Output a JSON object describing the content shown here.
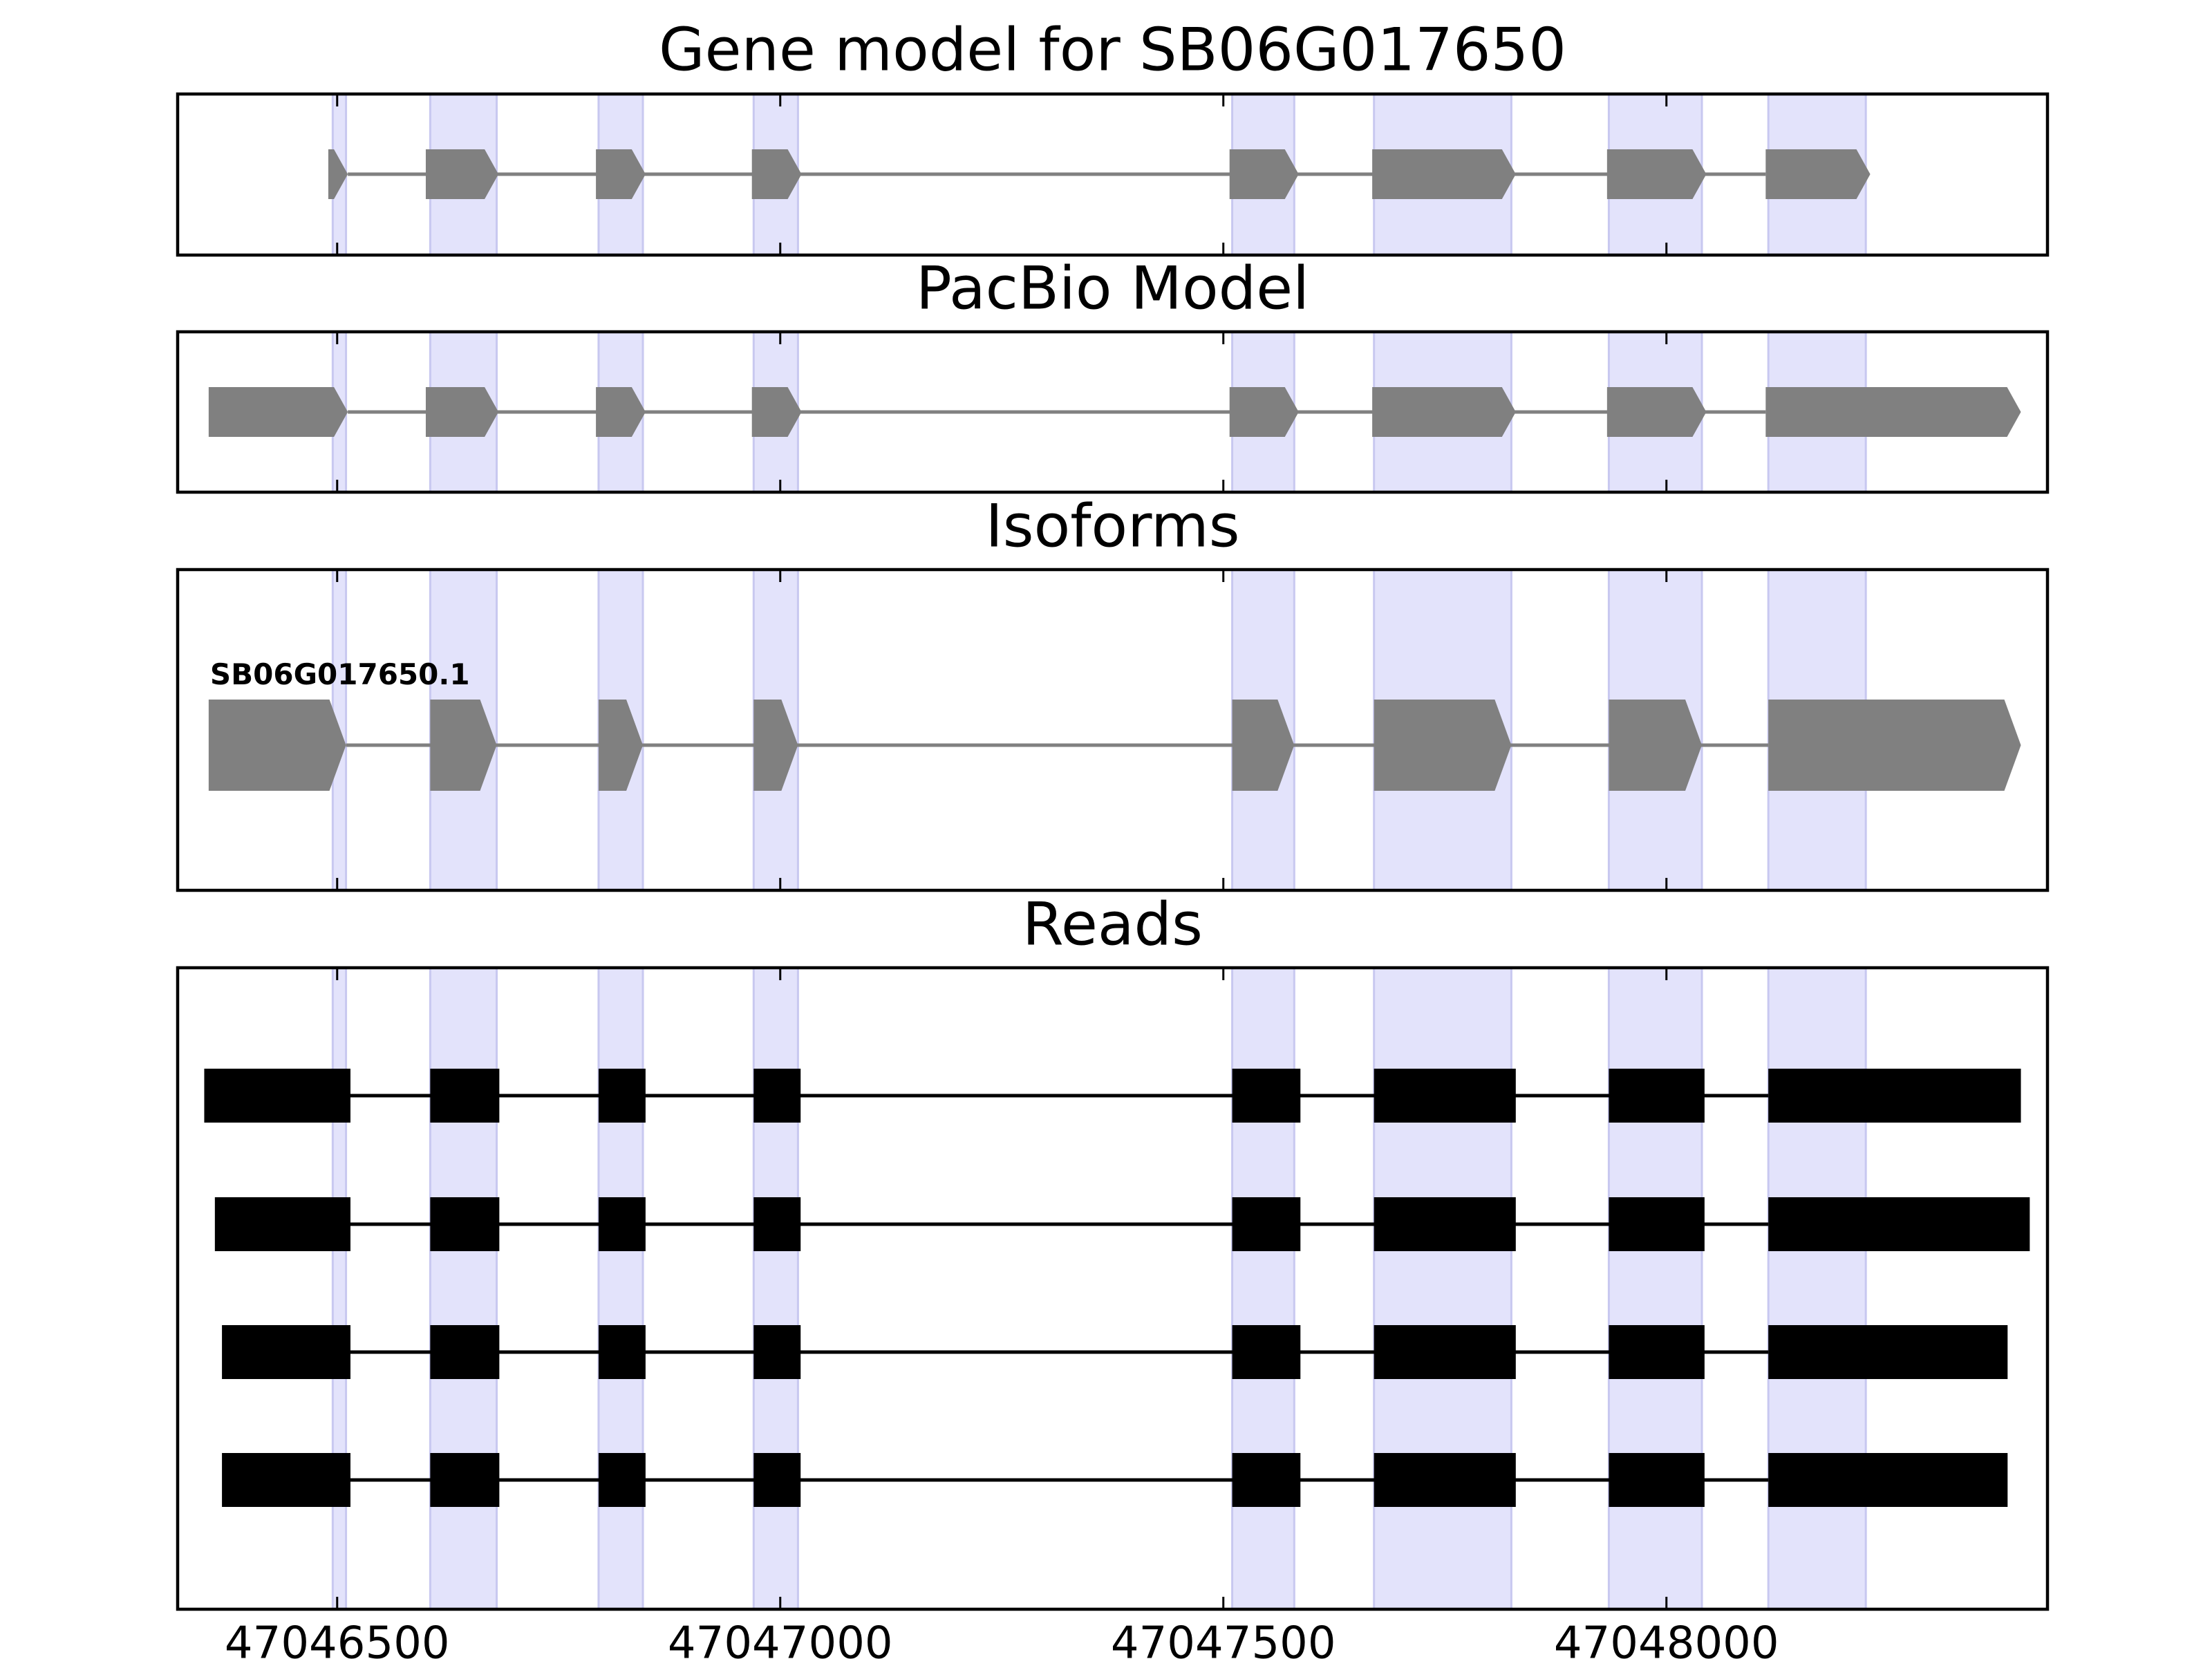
{
  "chart_data": {
    "type": "gene-model-track",
    "x_axis": {
      "unit": "genomic position (bp)",
      "range": [
        47046320,
        47048430
      ],
      "ticks": [
        "47046500",
        "47047000",
        "47047500",
        "47048000"
      ]
    },
    "exon_regions": [
      [
        47046495,
        47046510
      ],
      [
        47046605,
        47046680
      ],
      [
        47046795,
        47046845
      ],
      [
        47046970,
        47047020
      ],
      [
        47047510,
        47047580
      ],
      [
        47047670,
        47047825
      ],
      [
        47047935,
        47048040
      ],
      [
        47048115,
        47048225
      ]
    ],
    "panels": [
      {
        "title": "Gene model for SB06G017650",
        "style": "gene",
        "features": [
          {
            "exons": [
              [
                47046490,
                47046512
              ],
              [
                47046600,
                47046682
              ],
              [
                47046792,
                47046848
              ],
              [
                47046968,
                47047024
              ],
              [
                47047507,
                47047585
              ],
              [
                47047668,
                47047830
              ],
              [
                47047933,
                47048045
              ],
              [
                47048112,
                47048230
              ]
            ]
          }
        ]
      },
      {
        "title": "PacBio Model",
        "style": "gene",
        "features": [
          {
            "exons": [
              [
                47046355,
                47046512
              ],
              [
                47046600,
                47046682
              ],
              [
                47046792,
                47046848
              ],
              [
                47046968,
                47047024
              ],
              [
                47047507,
                47047585
              ],
              [
                47047668,
                47047830
              ],
              [
                47047933,
                47048045
              ],
              [
                47048112,
                47048400
              ]
            ]
          }
        ]
      },
      {
        "title": "Isoforms",
        "style": "isoform",
        "features": [
          {
            "label": "SB06G017650.1",
            "exons": [
              [
                47046355,
                47046510
              ],
              [
                47046605,
                47046680
              ],
              [
                47046795,
                47046845
              ],
              [
                47046970,
                47047020
              ],
              [
                47047510,
                47047580
              ],
              [
                47047670,
                47047825
              ],
              [
                47047935,
                47048040
              ],
              [
                47048115,
                47048400
              ]
            ]
          }
        ]
      },
      {
        "title": "Reads",
        "style": "read",
        "features": [
          {
            "exons": [
              [
                47046350,
                47046515
              ],
              [
                47046605,
                47046683
              ],
              [
                47046795,
                47046848
              ],
              [
                47046970,
                47047023
              ],
              [
                47047510,
                47047587
              ],
              [
                47047670,
                47047830
              ],
              [
                47047935,
                47048043
              ],
              [
                47048115,
                47048400
              ]
            ]
          },
          {
            "exons": [
              [
                47046362,
                47046515
              ],
              [
                47046605,
                47046683
              ],
              [
                47046795,
                47046848
              ],
              [
                47046970,
                47047023
              ],
              [
                47047510,
                47047587
              ],
              [
                47047670,
                47047830
              ],
              [
                47047935,
                47048043
              ],
              [
                47048115,
                47048410
              ]
            ]
          },
          {
            "exons": [
              [
                47046370,
                47046515
              ],
              [
                47046605,
                47046683
              ],
              [
                47046795,
                47046848
              ],
              [
                47046970,
                47047023
              ],
              [
                47047510,
                47047587
              ],
              [
                47047670,
                47047830
              ],
              [
                47047935,
                47048043
              ],
              [
                47048115,
                47048385
              ]
            ]
          },
          {
            "exons": [
              [
                47046370,
                47046515
              ],
              [
                47046605,
                47046683
              ],
              [
                47046795,
                47046848
              ],
              [
                47046970,
                47047023
              ],
              [
                47047510,
                47047587
              ],
              [
                47047670,
                47047830
              ],
              [
                47047935,
                47048043
              ],
              [
                47048115,
                47048385
              ]
            ]
          }
        ]
      }
    ],
    "colors": {
      "gene_exon": "#808080",
      "intron": "#808080",
      "read_exon": "#000000",
      "read_intron": "#000000",
      "exon_region": "#e3e3fb",
      "exon_region_edge": "#c8c8f0",
      "frame": "#000000"
    }
  }
}
